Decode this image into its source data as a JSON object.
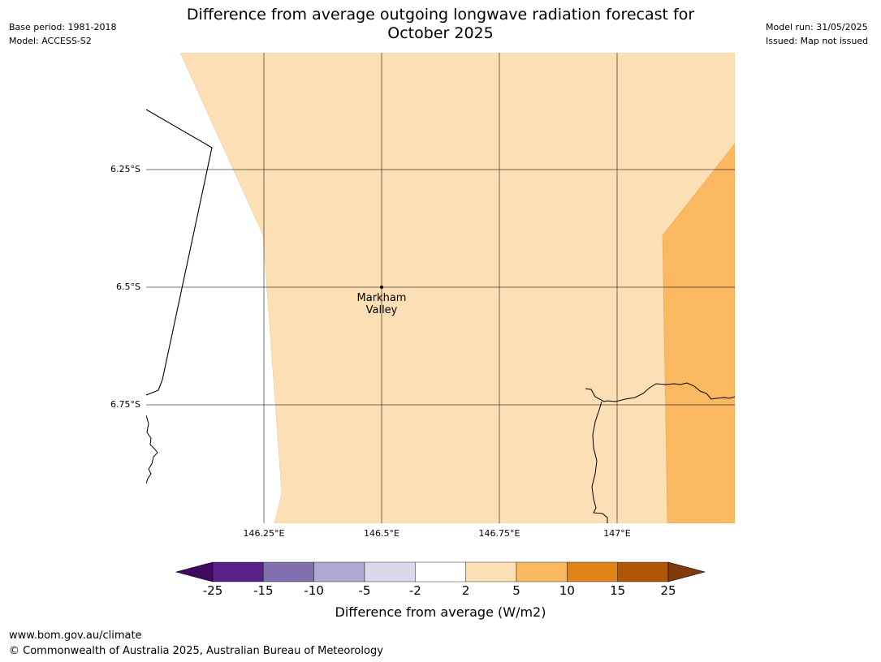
{
  "header": {
    "title_line1": "Difference from average outgoing longwave radiation forecast for",
    "title_line2": "October 2025",
    "base_period": "Base period: 1981-2018",
    "model": "Model: ACCESS-S2",
    "model_run": "Model run: 31/05/2025",
    "issued": "Issued: Map not issued"
  },
  "map": {
    "lat_labels": [
      "6.25°S",
      "6.5°S",
      "6.75°S"
    ],
    "lon_labels": [
      "146.25°E",
      "146.5°E",
      "146.75°E",
      "147°E"
    ],
    "location": {
      "name_line1": "Markham",
      "name_line2": "Valley",
      "lat": -6.5,
      "lon": 146.5
    },
    "category_colors": {
      "2_to_5": "#fddfb5",
      "5_to_10": "#fab861",
      "-2_to_2": "#ffffff"
    }
  },
  "colorbar": {
    "ticks": [
      "-25",
      "-15",
      "-10",
      "-5",
      "-2",
      "2",
      "5",
      "10",
      "15",
      "25"
    ],
    "colors": [
      "#3f0a5f",
      "#58218a",
      "#8170ad",
      "#b0a8d2",
      "#dad8ea",
      "#ffffff",
      "#fddfb5",
      "#fab861",
      "#e08417",
      "#b05706",
      "#7f3c0a"
    ],
    "title": "Difference from average (W/m2)"
  },
  "footer": {
    "url": "www.bom.gov.au/climate",
    "copyright": "© Commonwealth of Australia 2025, Australian Bureau of Meteorology"
  }
}
